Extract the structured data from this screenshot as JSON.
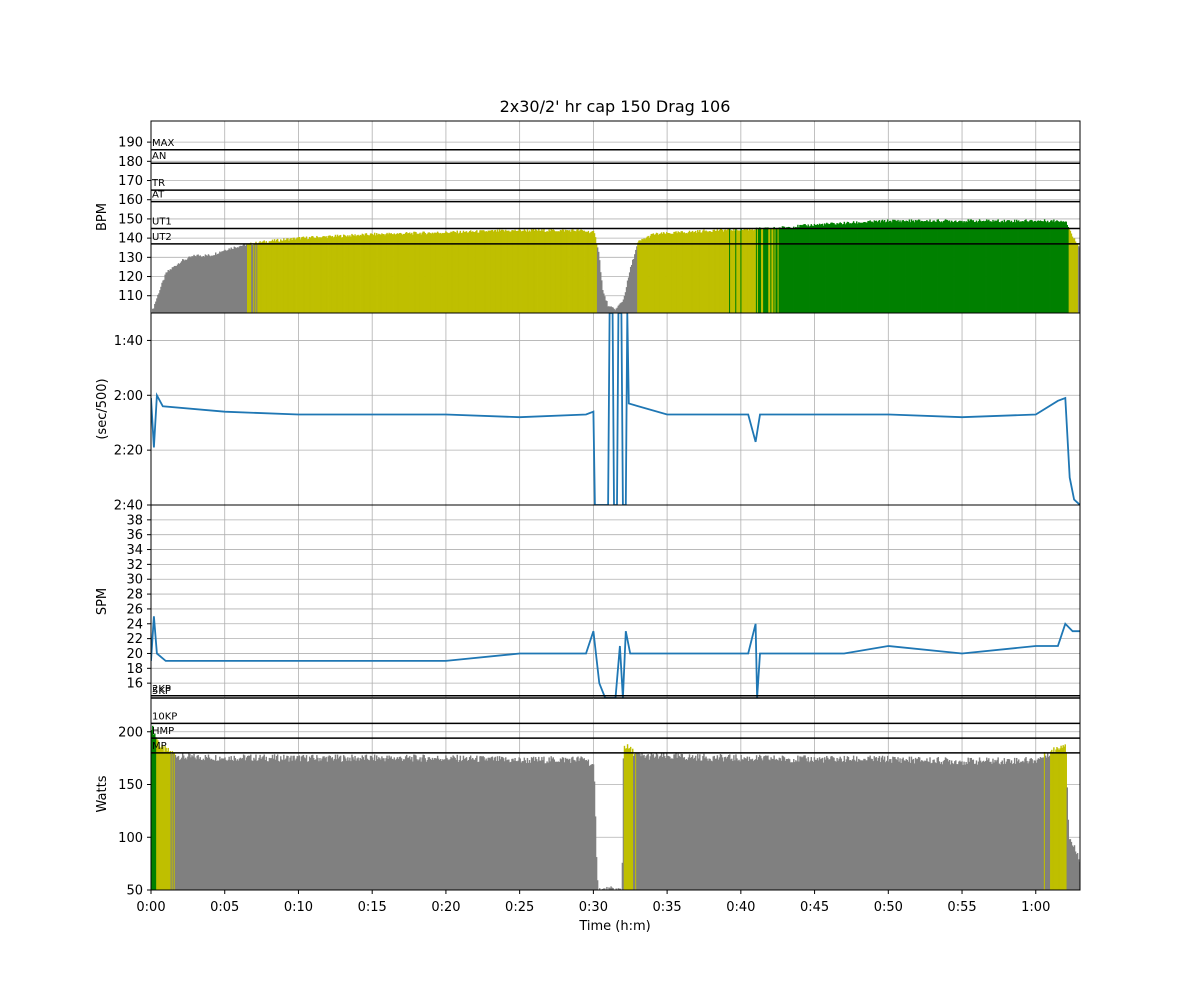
{
  "chart_data": {
    "type": "area",
    "title": "2x30/2' hr cap 150 Drag 106",
    "xlabel": "Time (h:m)",
    "x_range_min": [
      0,
      63
    ],
    "x_ticks": [
      "0:00",
      "0:05",
      "0:10",
      "0:15",
      "0:20",
      "0:25",
      "0:30",
      "0:35",
      "0:40",
      "0:45",
      "0:50",
      "0:55",
      "1:00"
    ],
    "x_tick_values": [
      0,
      5,
      10,
      15,
      20,
      25,
      30,
      35,
      40,
      45,
      50,
      55,
      60
    ],
    "grid": true,
    "panels": [
      {
        "name": "heart-rate",
        "ylabel": "BPM",
        "type": "area",
        "ylim": [
          101,
          201
        ],
        "y_ticks": [
          110,
          120,
          130,
          140,
          150,
          160,
          170,
          180,
          190
        ],
        "zone_lines": [
          {
            "label": "MAX",
            "value": 186
          },
          {
            "label": "AN",
            "value": 179
          },
          {
            "label": "TR",
            "value": 165
          },
          {
            "label": "AT",
            "value": 159
          },
          {
            "label": "UT1",
            "value": 145
          },
          {
            "label": "UT2",
            "value": 137
          }
        ],
        "zone_colors": {
          "below_UT2": "#808080",
          "UT2": "#bfbf00",
          "UT1": "#008000"
        },
        "series": [
          {
            "time_min": 0.0,
            "bpm": 101
          },
          {
            "time_min": 0.5,
            "bpm": 112
          },
          {
            "time_min": 1.0,
            "bpm": 122
          },
          {
            "time_min": 2.0,
            "bpm": 128
          },
          {
            "time_min": 3.0,
            "bpm": 131
          },
          {
            "time_min": 4.0,
            "bpm": 131
          },
          {
            "time_min": 5.0,
            "bpm": 134
          },
          {
            "time_min": 6.0,
            "bpm": 136
          },
          {
            "time_min": 7.5,
            "bpm": 138
          },
          {
            "time_min": 10.0,
            "bpm": 140
          },
          {
            "time_min": 15.0,
            "bpm": 142
          },
          {
            "time_min": 20.0,
            "bpm": 143
          },
          {
            "time_min": 25.0,
            "bpm": 144
          },
          {
            "time_min": 29.0,
            "bpm": 144
          },
          {
            "time_min": 30.0,
            "bpm": 143
          },
          {
            "time_min": 30.3,
            "bpm": 134
          },
          {
            "time_min": 30.6,
            "bpm": 112
          },
          {
            "time_min": 31.0,
            "bpm": 104
          },
          {
            "time_min": 31.5,
            "bpm": 103
          },
          {
            "time_min": 32.0,
            "bpm": 108
          },
          {
            "time_min": 32.5,
            "bpm": 125
          },
          {
            "time_min": 33.0,
            "bpm": 138
          },
          {
            "time_min": 34.0,
            "bpm": 142
          },
          {
            "time_min": 38.0,
            "bpm": 144
          },
          {
            "time_min": 42.0,
            "bpm": 145
          },
          {
            "time_min": 45.0,
            "bpm": 147
          },
          {
            "time_min": 50.0,
            "bpm": 149
          },
          {
            "time_min": 55.0,
            "bpm": 149
          },
          {
            "time_min": 60.0,
            "bpm": 149
          },
          {
            "time_min": 62.0,
            "bpm": 149
          },
          {
            "time_min": 62.5,
            "bpm": 140
          },
          {
            "time_min": 63.0,
            "bpm": 135
          }
        ]
      },
      {
        "name": "pace",
        "ylabel": "(sec/500)",
        "type": "line",
        "y_inverted": true,
        "ylim_sec": [
          90,
          160
        ],
        "y_ticks": [
          "1:40",
          "2:00",
          "2:20",
          "2:40"
        ],
        "y_tick_values": [
          100,
          120,
          140,
          160
        ],
        "color": "#1f77b4",
        "series": [
          {
            "time_min": 0.0,
            "sec": 121
          },
          {
            "time_min": 0.2,
            "sec": 139
          },
          {
            "time_min": 0.4,
            "sec": 120
          },
          {
            "time_min": 0.8,
            "sec": 124
          },
          {
            "time_min": 5.0,
            "sec": 126
          },
          {
            "time_min": 10.0,
            "sec": 127
          },
          {
            "time_min": 20.0,
            "sec": 127
          },
          {
            "time_min": 25.0,
            "sec": 128
          },
          {
            "time_min": 29.5,
            "sec": 127
          },
          {
            "time_min": 30.0,
            "sec": 126
          },
          {
            "time_min": 30.1,
            "sec": 160
          },
          {
            "time_min": 31.0,
            "sec": 160
          },
          {
            "time_min": 31.1,
            "sec": 90
          },
          {
            "time_min": 31.3,
            "sec": 90
          },
          {
            "time_min": 31.4,
            "sec": 160
          },
          {
            "time_min": 31.6,
            "sec": 160
          },
          {
            "time_min": 31.7,
            "sec": 90
          },
          {
            "time_min": 31.9,
            "sec": 90
          },
          {
            "time_min": 32.0,
            "sec": 160
          },
          {
            "time_min": 32.2,
            "sec": 160
          },
          {
            "time_min": 32.3,
            "sec": 90
          },
          {
            "time_min": 32.4,
            "sec": 123
          },
          {
            "time_min": 35.0,
            "sec": 127
          },
          {
            "time_min": 40.5,
            "sec": 127
          },
          {
            "time_min": 41.0,
            "sec": 137
          },
          {
            "time_min": 41.3,
            "sec": 127
          },
          {
            "time_min": 45.0,
            "sec": 127
          },
          {
            "time_min": 50.0,
            "sec": 127
          },
          {
            "time_min": 55.0,
            "sec": 128
          },
          {
            "time_min": 60.0,
            "sec": 127
          },
          {
            "time_min": 61.5,
            "sec": 122
          },
          {
            "time_min": 62.0,
            "sec": 121
          },
          {
            "time_min": 62.3,
            "sec": 150
          },
          {
            "time_min": 62.6,
            "sec": 158
          },
          {
            "time_min": 63.0,
            "sec": 160
          }
        ]
      },
      {
        "name": "stroke-rate",
        "ylabel": "SPM",
        "type": "line",
        "ylim": [
          14,
          40
        ],
        "y_ticks": [
          16,
          18,
          20,
          22,
          24,
          26,
          28,
          30,
          32,
          34,
          36,
          38
        ],
        "zone_lines": [
          {
            "label": "2KP",
            "value": 14.3
          },
          {
            "label": "5KP",
            "value": 14.0
          }
        ],
        "color": "#1f77b4",
        "series": [
          {
            "time_min": 0.0,
            "spm": 19
          },
          {
            "time_min": 0.2,
            "spm": 25
          },
          {
            "time_min": 0.4,
            "spm": 20
          },
          {
            "time_min": 1.0,
            "spm": 19
          },
          {
            "time_min": 7.0,
            "spm": 19
          },
          {
            "time_min": 10.0,
            "spm": 19
          },
          {
            "time_min": 20.0,
            "spm": 19
          },
          {
            "time_min": 25.0,
            "spm": 20
          },
          {
            "time_min": 29.5,
            "spm": 20
          },
          {
            "time_min": 30.0,
            "spm": 23
          },
          {
            "time_min": 30.4,
            "spm": 16
          },
          {
            "time_min": 30.8,
            "spm": 14
          },
          {
            "time_min": 31.5,
            "spm": 14
          },
          {
            "time_min": 31.8,
            "spm": 21
          },
          {
            "time_min": 32.0,
            "spm": 14
          },
          {
            "time_min": 32.2,
            "spm": 23
          },
          {
            "time_min": 32.5,
            "spm": 20
          },
          {
            "time_min": 40.5,
            "spm": 20
          },
          {
            "time_min": 41.0,
            "spm": 24
          },
          {
            "time_min": 41.1,
            "spm": 14
          },
          {
            "time_min": 41.3,
            "spm": 20
          },
          {
            "time_min": 47.0,
            "spm": 20
          },
          {
            "time_min": 50.0,
            "spm": 21
          },
          {
            "time_min": 55.0,
            "spm": 20
          },
          {
            "time_min": 60.0,
            "spm": 21
          },
          {
            "time_min": 61.5,
            "spm": 21
          },
          {
            "time_min": 62.0,
            "spm": 24
          },
          {
            "time_min": 62.5,
            "spm": 23
          },
          {
            "time_min": 63.0,
            "spm": 23
          }
        ]
      },
      {
        "name": "power",
        "ylabel": "Watts",
        "type": "area",
        "ylim": [
          50,
          232
        ],
        "y_ticks": [
          50,
          100,
          150,
          200
        ],
        "zone_lines": [
          {
            "label": "10KP",
            "value": 208
          },
          {
            "label": "HMP",
            "value": 194
          },
          {
            "label": "MP",
            "value": 180
          }
        ],
        "zone_colors": {
          "below_MP": "#808080",
          "MP": "#bfbf00",
          "above": "#008000"
        },
        "series": [
          {
            "time_min": 0.0,
            "watts": 205
          },
          {
            "time_min": 0.6,
            "watts": 185
          },
          {
            "time_min": 2.0,
            "watts": 176
          },
          {
            "time_min": 10.0,
            "watts": 175
          },
          {
            "time_min": 20.0,
            "watts": 175
          },
          {
            "time_min": 25.0,
            "watts": 173
          },
          {
            "time_min": 29.5,
            "watts": 174
          },
          {
            "time_min": 30.0,
            "watts": 165
          },
          {
            "time_min": 30.2,
            "watts": 70
          },
          {
            "time_min": 30.3,
            "watts": 50
          },
          {
            "time_min": 31.9,
            "watts": 50
          },
          {
            "time_min": 32.0,
            "watts": 188
          },
          {
            "time_min": 33.0,
            "watts": 177
          },
          {
            "time_min": 40.0,
            "watts": 175
          },
          {
            "time_min": 45.0,
            "watts": 174
          },
          {
            "time_min": 50.0,
            "watts": 174
          },
          {
            "time_min": 55.0,
            "watts": 172
          },
          {
            "time_min": 60.0,
            "watts": 173
          },
          {
            "time_min": 61.5,
            "watts": 185
          },
          {
            "time_min": 62.0,
            "watts": 190
          },
          {
            "time_min": 62.2,
            "watts": 100
          },
          {
            "time_min": 63.0,
            "watts": 78
          }
        ]
      }
    ]
  }
}
